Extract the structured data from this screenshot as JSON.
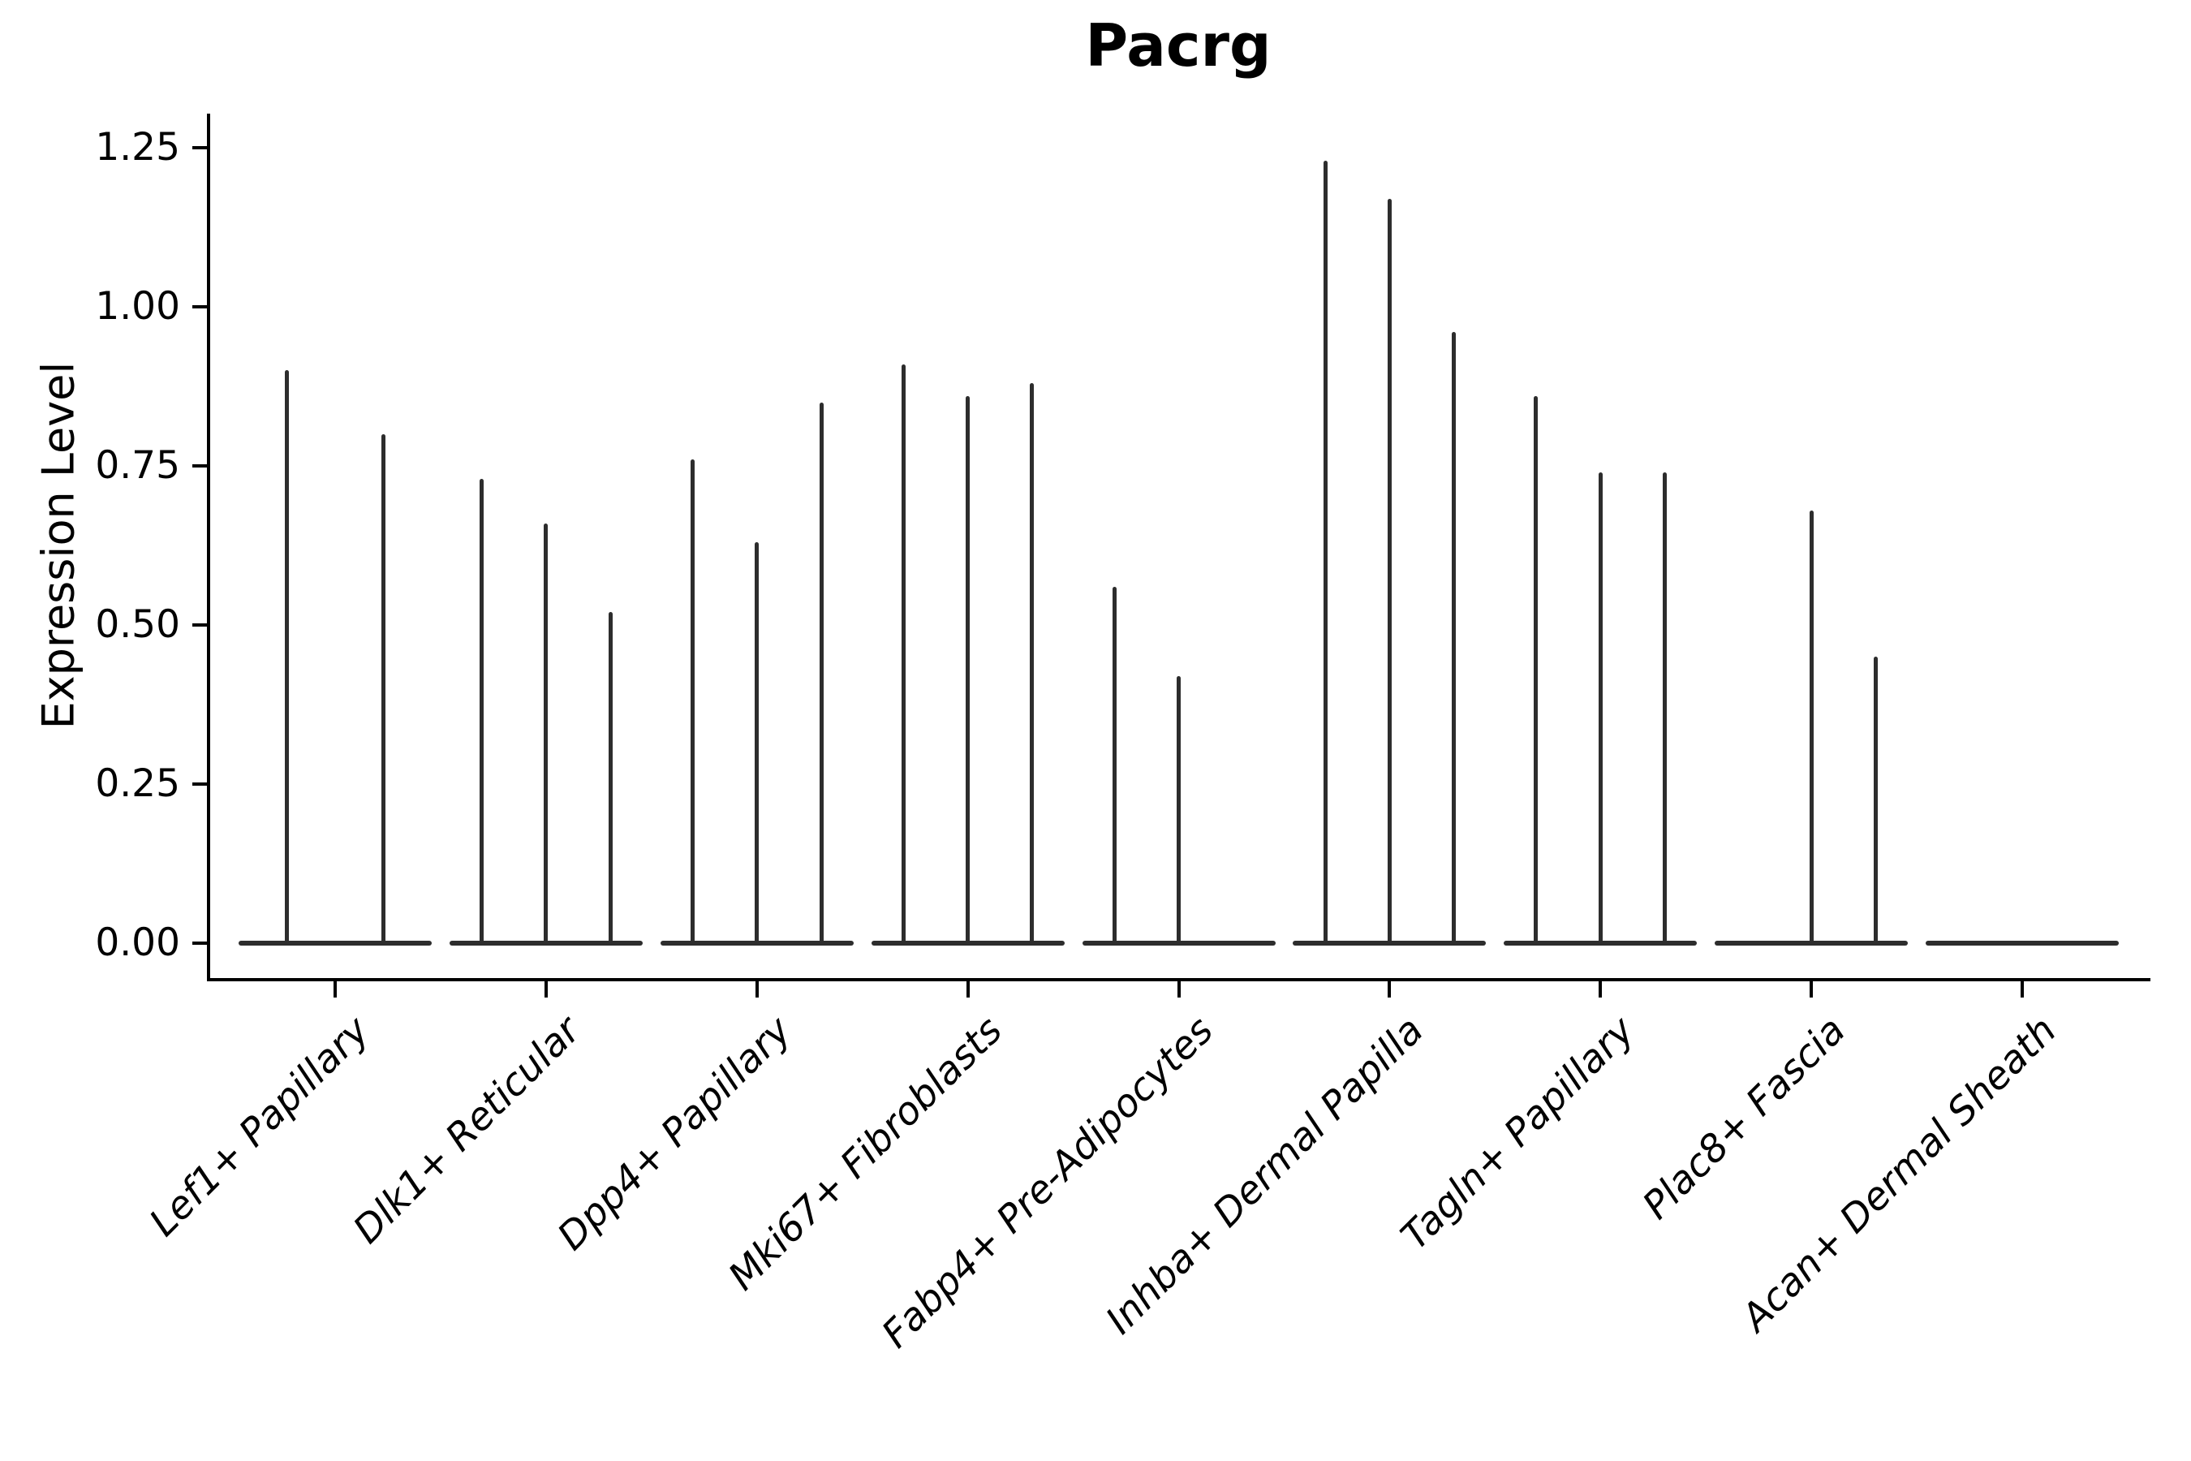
{
  "title": "Pacrg",
  "ylabel": "Expression Level",
  "colors": {
    "violin": "#2d2d2d",
    "axis": "#000000",
    "background": "#ffffff"
  },
  "chart_data": {
    "type": "violin",
    "title": "Pacrg",
    "xlabel": "",
    "ylabel": "Expression Level",
    "ylim": [
      0,
      1.3
    ],
    "grid": false,
    "legend": "none",
    "yticks": [
      {
        "value": 0.0,
        "label": "0.00"
      },
      {
        "value": 0.25,
        "label": "0.25"
      },
      {
        "value": 0.5,
        "label": "0.50"
      },
      {
        "value": 0.75,
        "label": "0.75"
      },
      {
        "value": 1.0,
        "label": "1.00"
      },
      {
        "value": 1.25,
        "label": "1.25"
      }
    ],
    "categories": [
      "Lef1+ Papillary",
      "Dlk1+ Reticular",
      "Dpp4+ Papillary",
      "Mki67+ Fibroblasts",
      "Fabp4+ Pre-Adipocytes",
      "Inhba+ Dermal Papilla",
      "Tagln+ Papillary",
      "Plac8+ Fascia",
      "Acan+ Dermal Sheath"
    ],
    "groups": [
      {
        "label": "Lef1+ Papillary",
        "violin_maxima": [
          0.9,
          0.8
        ]
      },
      {
        "label": "Dlk1+ Reticular",
        "violin_maxima": [
          0.73,
          0.66,
          0.52
        ]
      },
      {
        "label": "Dpp4+ Papillary",
        "violin_maxima": [
          0.76,
          0.63,
          0.85
        ]
      },
      {
        "label": "Mki67+ Fibroblasts",
        "violin_maxima": [
          0.91,
          0.86,
          0.88
        ]
      },
      {
        "label": "Fabp4+ Pre-Adipocytes",
        "violin_maxima": [
          0.56,
          0.42,
          0
        ]
      },
      {
        "label": "Inhba+ Dermal Papilla",
        "violin_maxima": [
          1.23,
          1.17,
          0.96
        ]
      },
      {
        "label": "Tagln+ Papillary",
        "violin_maxima": [
          0.86,
          0.74,
          0.74
        ]
      },
      {
        "label": "Plac8+ Fascia",
        "violin_maxima": [
          0,
          0.68,
          0.45
        ]
      },
      {
        "label": "Acan+ Dermal Sheath",
        "violin_maxima": [
          0
        ]
      }
    ],
    "note": "Violins are near-zero width; each shows a flat base at 0 with a thin spike to its maximum. A maximum of 0 means a fully flat violin."
  }
}
